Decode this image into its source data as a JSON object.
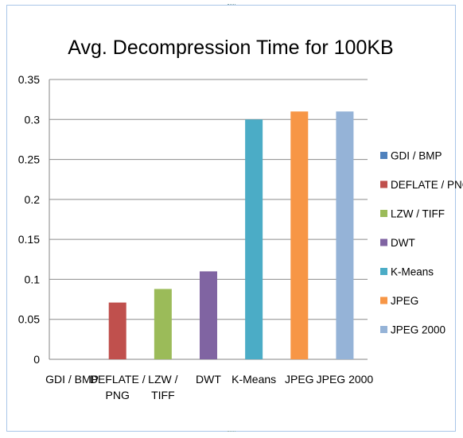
{
  "chart_data": {
    "type": "bar",
    "title": "Avg.  Decompression Time for 100KB",
    "xlabel": "",
    "ylabel": "",
    "ylim": [
      0,
      0.35
    ],
    "yticks": [
      "0",
      "0.05",
      "0.1",
      "0.15",
      "0.2",
      "0.25",
      "0.3",
      "0.35"
    ],
    "grid": true,
    "legend_position": "right",
    "categories": [
      [
        "GDI / BMP"
      ],
      [
        "DEFLATE /",
        "PNG"
      ],
      [
        "LZW /",
        "TIFF"
      ],
      [
        "DWT"
      ],
      [
        "K-Means"
      ],
      [
        "JPEG"
      ],
      [
        "JPEG 2000"
      ]
    ],
    "series": [
      {
        "name": "GDI / BMP",
        "color": "#4f81bd",
        "value": 0
      },
      {
        "name": "DEFLATE / PNG",
        "color": "#c0504d",
        "value": 0.071
      },
      {
        "name": "LZW / TIFF",
        "color": "#9bbb59",
        "value": 0.088
      },
      {
        "name": "DWT",
        "color": "#8064a2",
        "value": 0.11
      },
      {
        "name": "K-Means",
        "color": "#4bacc6",
        "value": 0.3
      },
      {
        "name": "JPEG",
        "color": "#f79646",
        "value": 0.31
      },
      {
        "name": "JPEG 2000",
        "color": "#95b3d7",
        "value": 0.31
      }
    ]
  }
}
